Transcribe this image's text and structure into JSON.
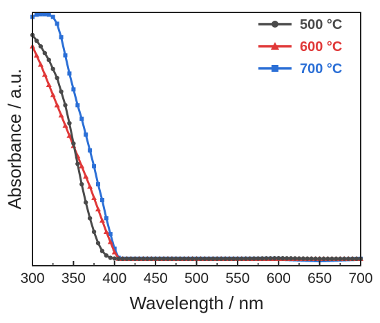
{
  "chart_data": {
    "type": "line",
    "xlabel": "Wavelength / nm",
    "ylabel": "Absorbance / a.u.",
    "xlim": [
      300,
      700
    ],
    "ylim": [
      0,
      1.12
    ],
    "x_ticks": [
      "300",
      "350",
      "400",
      "450",
      "500",
      "550",
      "600",
      "650",
      "700"
    ],
    "y_ticks_shown": false,
    "grid": false,
    "legend": "top-right",
    "series": [
      {
        "name": "500 °C",
        "color": "#4a4a4a",
        "marker": "circle",
        "x": [
          300,
          310,
          320,
          330,
          340,
          345,
          350,
          355,
          360,
          365,
          370,
          375,
          380,
          385,
          390,
          395,
          400,
          405,
          410,
          420,
          450,
          500,
          550,
          600,
          650,
          700
        ],
        "y": [
          1.02,
          0.97,
          0.91,
          0.83,
          0.71,
          0.63,
          0.54,
          0.45,
          0.36,
          0.28,
          0.21,
          0.15,
          0.1,
          0.065,
          0.045,
          0.035,
          0.032,
          0.031,
          0.031,
          0.031,
          0.031,
          0.031,
          0.031,
          0.033,
          0.031,
          0.031
        ]
      },
      {
        "name": "600 °C",
        "color": "#e03838",
        "marker": "triangle",
        "x": [
          300,
          310,
          320,
          330,
          340,
          350,
          360,
          370,
          380,
          390,
          400,
          405,
          410,
          420,
          450,
          500,
          550,
          600,
          650,
          700
        ],
        "y": [
          0.97,
          0.89,
          0.8,
          0.71,
          0.62,
          0.53,
          0.44,
          0.35,
          0.25,
          0.15,
          0.06,
          0.032,
          0.031,
          0.031,
          0.031,
          0.031,
          0.031,
          0.031,
          0.031,
          0.031
        ]
      },
      {
        "name": "700 °C",
        "color": "#2b6fd6",
        "marker": "square",
        "x": [
          300,
          305,
          310,
          315,
          320,
          325,
          330,
          335,
          340,
          345,
          350,
          355,
          360,
          365,
          370,
          375,
          380,
          385,
          390,
          395,
          400,
          405,
          410,
          420,
          450,
          500,
          550,
          600,
          650,
          700
        ],
        "y": [
          1.1,
          1.11,
          1.112,
          1.112,
          1.11,
          1.1,
          1.07,
          1.01,
          0.93,
          0.85,
          0.78,
          0.71,
          0.65,
          0.58,
          0.51,
          0.44,
          0.36,
          0.29,
          0.21,
          0.14,
          0.075,
          0.035,
          0.031,
          0.031,
          0.031,
          0.031,
          0.031,
          0.031,
          0.024,
          0.031
        ]
      }
    ]
  }
}
